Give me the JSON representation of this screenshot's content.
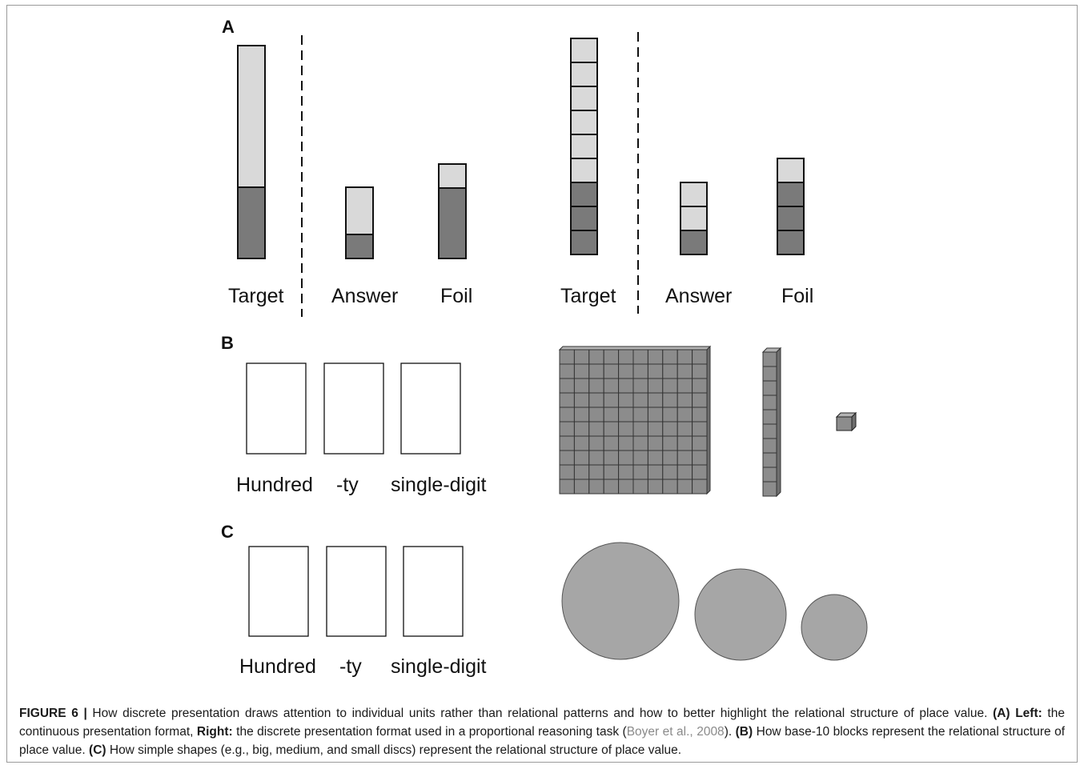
{
  "panels": {
    "a": {
      "letter": "A",
      "left_labels": [
        "Target",
        "Answer",
        "Foil"
      ],
      "right_labels": [
        "Target",
        "Answer",
        "Foil"
      ],
      "continuous_bars": [
        {
          "name": "target",
          "dark_fraction": 0.33
        },
        {
          "name": "answer",
          "dark_fraction": 0.33
        },
        {
          "name": "foil",
          "dark_fraction": 0.75
        }
      ],
      "discrete_bars": [
        {
          "name": "target",
          "units": 9,
          "dark_units": 3
        },
        {
          "name": "answer",
          "units": 3,
          "dark_units": 1
        },
        {
          "name": "foil",
          "units": 4,
          "dark_units": 3
        }
      ]
    },
    "b": {
      "letter": "B",
      "labels": [
        "Hundred",
        "-ty",
        "single-digit"
      ]
    },
    "c": {
      "letter": "C",
      "labels": [
        "Hundred",
        "-ty",
        "single-digit"
      ]
    }
  },
  "colors": {
    "light": "#d9d9d9",
    "dark": "#7a7a7a",
    "disc": "#a6a6a6",
    "block": "#8c8c8c"
  },
  "caption": {
    "figure_label": "FIGURE 6 |",
    "intro": " How discrete presentation draws attention to individual units rather than relational patterns and how to better highlight the relational structure of place value. ",
    "a_label": "(A) Left:",
    "a_text": " the continuous presentation format, ",
    "right_label": "Right:",
    "right_text": " the discrete presentation format used in a proportional reasoning task (",
    "citation": "Boyer et al., 2008",
    "after_citation": "). ",
    "b_label": "(B)",
    "b_text": " How base-10 blocks represent the relational structure of place value. ",
    "c_label": "(C)",
    "c_text": " How simple shapes (e.g., big, medium, and small discs) represent the relational structure of place value."
  }
}
